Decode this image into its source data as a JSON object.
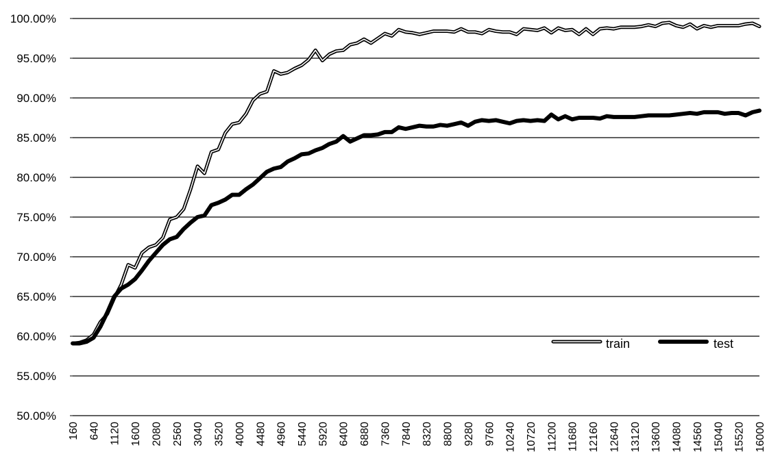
{
  "chart_data": {
    "type": "line",
    "title": "",
    "xlabel": "",
    "ylabel": "",
    "ylim": [
      0.5,
      1.0
    ],
    "y_ticks": [
      "50.00%",
      "55.00%",
      "60.00%",
      "65.00%",
      "70.00%",
      "75.00%",
      "80.00%",
      "85.00%",
      "90.00%",
      "95.00%",
      "100.00%"
    ],
    "y_tick_values": [
      0.5,
      0.55,
      0.6,
      0.65,
      0.7,
      0.75,
      0.8,
      0.85,
      0.9,
      0.95,
      1.0
    ],
    "x_tick_labels": [
      "160",
      "640",
      "1120",
      "1600",
      "2080",
      "2560",
      "3040",
      "3520",
      "4000",
      "4480",
      "4960",
      "5440",
      "5920",
      "6400",
      "6880",
      "7360",
      "7840",
      "8320",
      "8800",
      "9280",
      "9760",
      "10240",
      "10720",
      "11200",
      "11680",
      "12160",
      "12640",
      "13120",
      "13600",
      "14080",
      "14560",
      "15040",
      "15520",
      "16000"
    ],
    "x_tick_values": [
      160,
      640,
      1120,
      1600,
      2080,
      2560,
      3040,
      3520,
      4000,
      4480,
      4960,
      5440,
      5920,
      6400,
      6880,
      7360,
      7840,
      8320,
      8800,
      9280,
      9760,
      10240,
      10720,
      11200,
      11680,
      12160,
      12640,
      13120,
      13600,
      14080,
      14560,
      15040,
      15520,
      16000
    ],
    "xlim": [
      160,
      16000
    ],
    "grid": "horizontal",
    "legend_position": "bottom-right",
    "series": [
      {
        "name": "train",
        "style": "outline",
        "x": [
          160,
          320,
          480,
          640,
          800,
          960,
          1120,
          1280,
          1440,
          1600,
          1760,
          1920,
          2080,
          2240,
          2400,
          2560,
          2720,
          2880,
          3040,
          3200,
          3360,
          3520,
          3680,
          3840,
          4000,
          4160,
          4320,
          4480,
          4640,
          4800,
          4960,
          5120,
          5280,
          5440,
          5600,
          5760,
          5920,
          6080,
          6240,
          6400,
          6560,
          6720,
          6880,
          7040,
          7200,
          7360,
          7520,
          7680,
          7840,
          8000,
          8160,
          8320,
          8480,
          8640,
          8800,
          8960,
          9120,
          9280,
          9440,
          9600,
          9760,
          9920,
          10080,
          10240,
          10400,
          10560,
          10720,
          10880,
          11040,
          11200,
          11360,
          11520,
          11680,
          11840,
          12000,
          12160,
          12320,
          12480,
          12640,
          12800,
          12960,
          13120,
          13280,
          13440,
          13600,
          13760,
          13920,
          14080,
          14240,
          14400,
          14560,
          14720,
          14880,
          15040,
          15200,
          15360,
          15520,
          15680,
          15840,
          16000
        ],
        "values": [
          0.591,
          0.592,
          0.595,
          0.602,
          0.618,
          0.628,
          0.648,
          0.665,
          0.69,
          0.686,
          0.705,
          0.712,
          0.715,
          0.724,
          0.747,
          0.75,
          0.76,
          0.785,
          0.814,
          0.805,
          0.832,
          0.835,
          0.856,
          0.867,
          0.869,
          0.88,
          0.897,
          0.905,
          0.908,
          0.934,
          0.93,
          0.932,
          0.937,
          0.941,
          0.948,
          0.96,
          0.947,
          0.955,
          0.959,
          0.96,
          0.967,
          0.969,
          0.974,
          0.969,
          0.975,
          0.981,
          0.978,
          0.986,
          0.983,
          0.982,
          0.98,
          0.982,
          0.984,
          0.984,
          0.984,
          0.983,
          0.987,
          0.983,
          0.983,
          0.981,
          0.986,
          0.984,
          0.983,
          0.983,
          0.98,
          0.987,
          0.986,
          0.985,
          0.988,
          0.982,
          0.988,
          0.985,
          0.986,
          0.98,
          0.987,
          0.98,
          0.987,
          0.988,
          0.987,
          0.989,
          0.989,
          0.989,
          0.99,
          0.992,
          0.99,
          0.994,
          0.995,
          0.991,
          0.989,
          0.993,
          0.987,
          0.991,
          0.989,
          0.991,
          0.991,
          0.991,
          0.991,
          0.993,
          0.994,
          0.99
        ]
      },
      {
        "name": "test",
        "style": "solid",
        "x": [
          160,
          320,
          480,
          640,
          800,
          960,
          1120,
          1280,
          1440,
          1600,
          1760,
          1920,
          2080,
          2240,
          2400,
          2560,
          2720,
          2880,
          3040,
          3200,
          3360,
          3520,
          3680,
          3840,
          4000,
          4160,
          4320,
          4480,
          4640,
          4800,
          4960,
          5120,
          5280,
          5440,
          5600,
          5760,
          5920,
          6080,
          6240,
          6400,
          6560,
          6720,
          6880,
          7040,
          7200,
          7360,
          7520,
          7680,
          7840,
          8000,
          8160,
          8320,
          8480,
          8640,
          8800,
          8960,
          9120,
          9280,
          9440,
          9600,
          9760,
          9920,
          10080,
          10240,
          10400,
          10560,
          10720,
          10880,
          11040,
          11200,
          11360,
          11520,
          11680,
          11840,
          12000,
          12160,
          12320,
          12480,
          12640,
          12800,
          12960,
          13120,
          13280,
          13440,
          13600,
          13760,
          13920,
          14080,
          14240,
          14400,
          14560,
          14720,
          14880,
          15040,
          15200,
          15360,
          15520,
          15680,
          15840,
          16000
        ],
        "values": [
          0.591,
          0.591,
          0.593,
          0.598,
          0.612,
          0.63,
          0.65,
          0.66,
          0.665,
          0.672,
          0.683,
          0.695,
          0.705,
          0.715,
          0.722,
          0.725,
          0.735,
          0.743,
          0.75,
          0.752,
          0.765,
          0.768,
          0.772,
          0.778,
          0.778,
          0.785,
          0.791,
          0.799,
          0.807,
          0.811,
          0.813,
          0.82,
          0.824,
          0.829,
          0.83,
          0.834,
          0.837,
          0.842,
          0.845,
          0.852,
          0.845,
          0.849,
          0.853,
          0.853,
          0.854,
          0.857,
          0.857,
          0.863,
          0.861,
          0.863,
          0.865,
          0.864,
          0.864,
          0.866,
          0.865,
          0.867,
          0.869,
          0.865,
          0.87,
          0.872,
          0.871,
          0.872,
          0.87,
          0.868,
          0.871,
          0.872,
          0.871,
          0.872,
          0.871,
          0.879,
          0.873,
          0.877,
          0.873,
          0.875,
          0.875,
          0.875,
          0.874,
          0.877,
          0.876,
          0.876,
          0.876,
          0.876,
          0.877,
          0.878,
          0.878,
          0.878,
          0.878,
          0.879,
          0.88,
          0.881,
          0.88,
          0.882,
          0.882,
          0.882,
          0.88,
          0.881,
          0.881,
          0.878,
          0.882,
          0.884
        ]
      }
    ]
  }
}
